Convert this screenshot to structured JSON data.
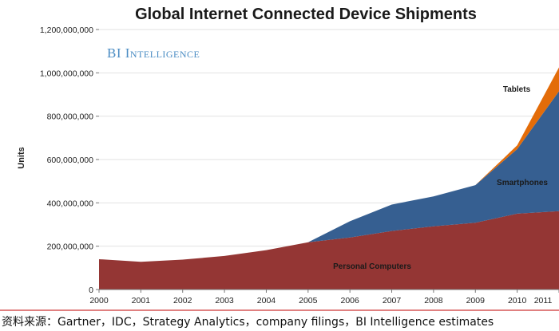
{
  "chart_data": {
    "type": "area",
    "stacked": true,
    "title": "Global Internet Connected Device Shipments",
    "ylabel": "Units",
    "xlabel": "",
    "x": [
      "2000",
      "2001",
      "2002",
      "2003",
      "2004",
      "2005",
      "2006",
      "2007",
      "2008",
      "2009",
      "2010",
      "2011"
    ],
    "ylim": [
      0,
      1200000000
    ],
    "yticks": [
      0,
      200000000,
      400000000,
      600000000,
      800000000,
      1000000000,
      1200000000
    ],
    "ytick_labels": [
      "0",
      "200,000,000",
      "400,000,000",
      "600,000,000",
      "800,000,000",
      "1,000,000,000",
      "1,200,000,000"
    ],
    "series": [
      {
        "name": "Personal Computers",
        "color": "#943634",
        "values": [
          140000000,
          128000000,
          138000000,
          155000000,
          182000000,
          218000000,
          240000000,
          270000000,
          292000000,
          308000000,
          350000000,
          362000000
        ]
      },
      {
        "name": "Smartphones",
        "color": "#365f91",
        "values": [
          0,
          0,
          0,
          0,
          0,
          0,
          75000000,
          122000000,
          138000000,
          174000000,
          298000000,
          553000000
        ]
      },
      {
        "name": "Tablets",
        "color": "#e36c09",
        "values": [
          0,
          0,
          0,
          0,
          0,
          0,
          0,
          0,
          0,
          0,
          17000000,
          110000000
        ]
      }
    ],
    "labels": {
      "pc": "Personal Computers",
      "smartphones": "Smartphones",
      "tablets": "Tablets"
    },
    "watermark": "BI Intelligence",
    "grid": true
  },
  "source_note": "资料来源：Gartner，IDC，Strategy Analytics，company filings，BI Intelligence estimates"
}
